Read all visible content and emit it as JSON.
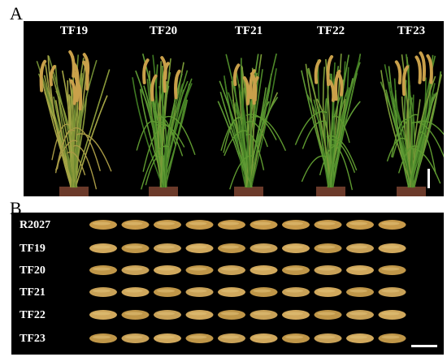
{
  "panel_a": {
    "letter": "A",
    "plant_labels": [
      "TF19",
      "TF20",
      "TF21",
      "TF22",
      "TF23"
    ]
  },
  "panel_b": {
    "letter": "B",
    "row_labels": [
      "R2027",
      "TF19",
      "TF20",
      "TF21",
      "TF22",
      "TF23"
    ],
    "grains_per_row": 10
  },
  "colors": {
    "background": "#000000",
    "foliage": "#4f8a2a",
    "panicle": "#c9a04a",
    "grain": "#c8a157"
  }
}
